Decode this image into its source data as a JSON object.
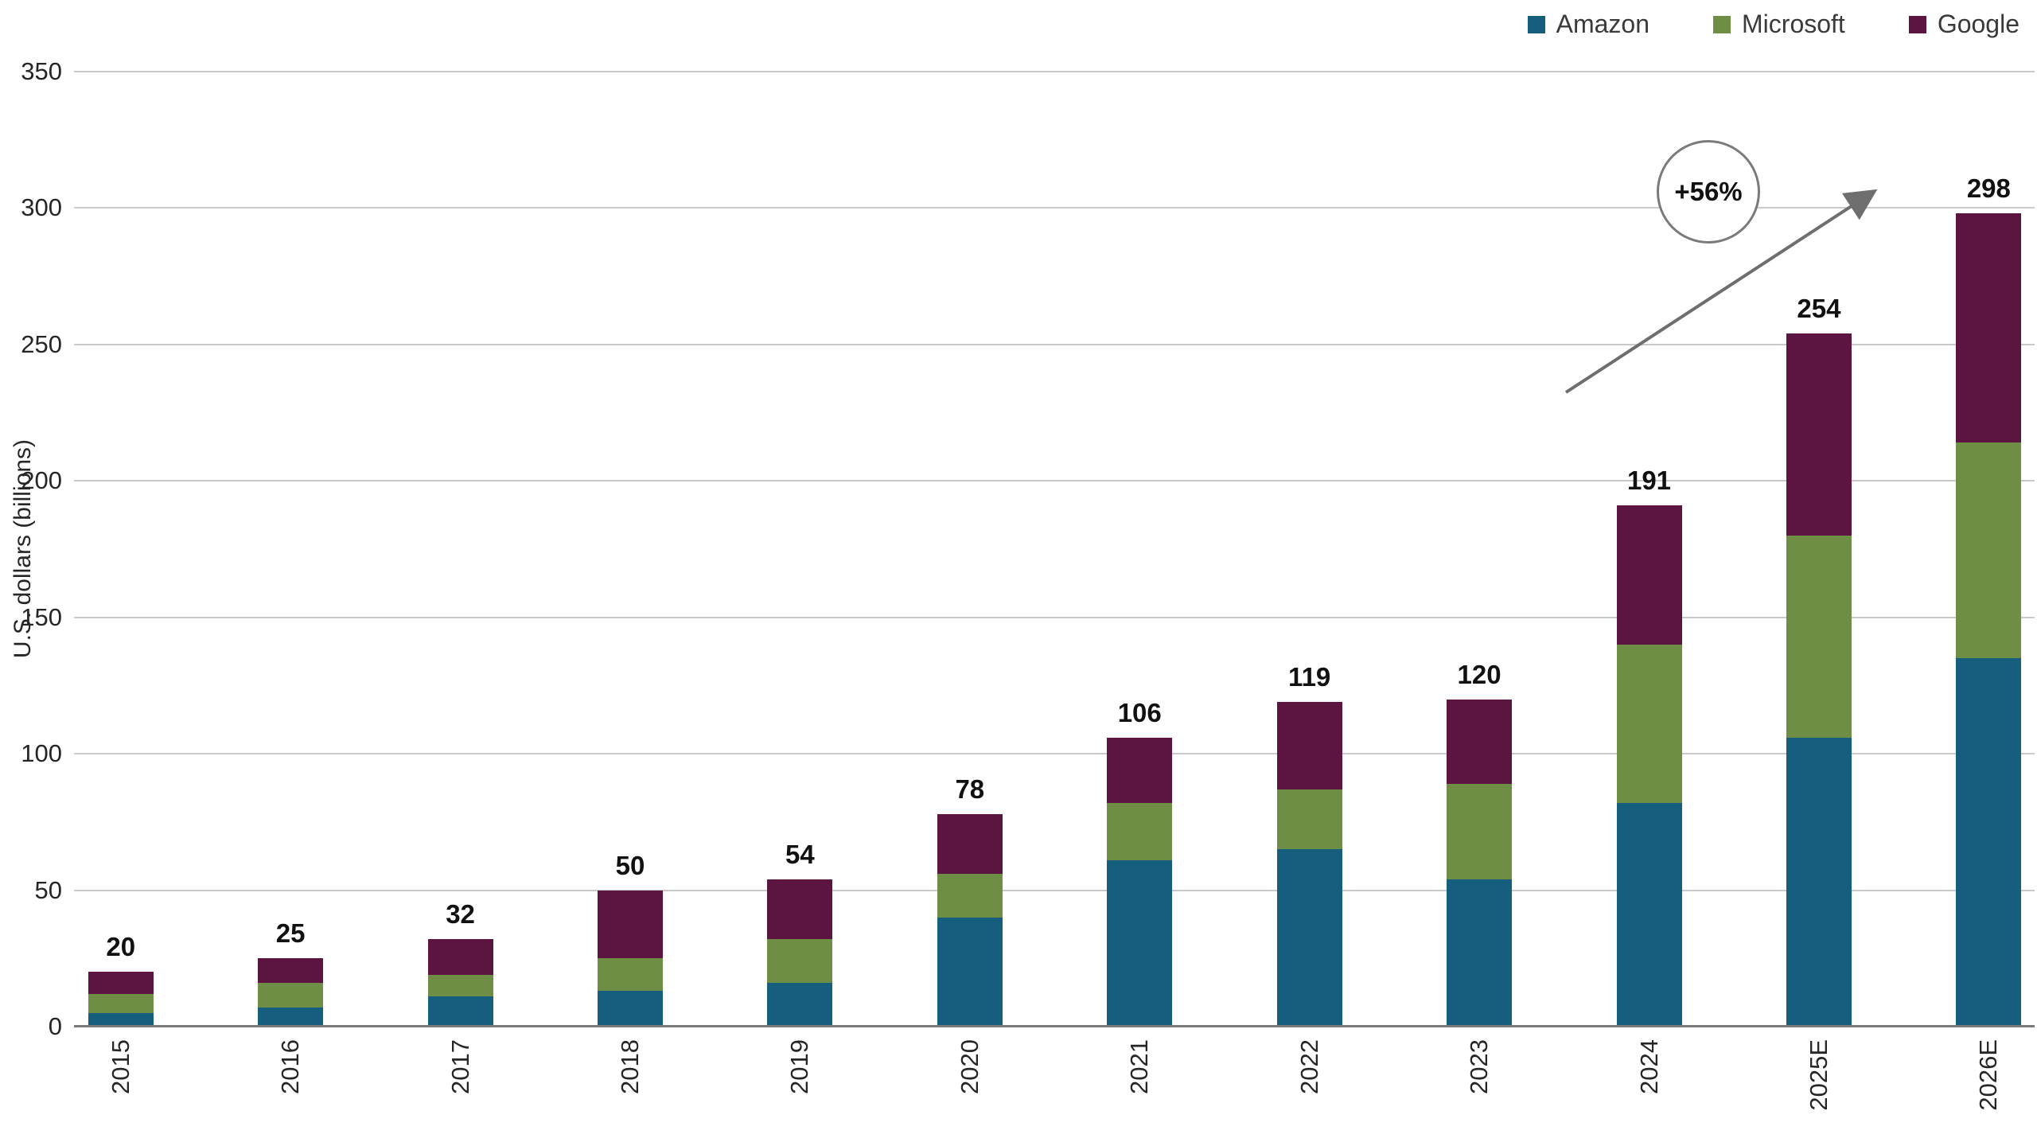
{
  "chart_data": {
    "type": "bar",
    "stacked": true,
    "title": "",
    "ylabel": "U.S. dollars (billions)",
    "xlabel": "",
    "ylim": [
      0,
      350
    ],
    "y_ticks": [
      0,
      50,
      100,
      150,
      200,
      250,
      300,
      350
    ],
    "grid": true,
    "legend_position": "top-right",
    "categories": [
      "2015",
      "2016",
      "2017",
      "2018",
      "2019",
      "2020",
      "2021",
      "2022",
      "2023",
      "2024",
      "2025E",
      "2026E"
    ],
    "series": [
      {
        "name": "Amazon",
        "color": "#155e7d",
        "values": [
          5,
          7,
          11,
          13,
          16,
          40,
          61,
          65,
          54,
          82,
          106,
          135
        ]
      },
      {
        "name": "Microsoft",
        "color": "#6d8e44",
        "values": [
          7,
          9,
          8,
          12,
          16,
          16,
          21,
          22,
          35,
          58,
          74,
          79
        ]
      },
      {
        "name": "Google",
        "color": "#5c1540",
        "values": [
          8,
          9,
          13,
          25,
          22,
          22,
          24,
          32,
          31,
          51,
          74,
          84
        ]
      }
    ],
    "totals": [
      20,
      25,
      32,
      50,
      54,
      78,
      106,
      119,
      120,
      191,
      254,
      298
    ],
    "annotation": {
      "label": "+56%"
    }
  },
  "colors": {
    "amazon": "#155e7d",
    "microsoft": "#6d8e44",
    "google": "#5c1540",
    "gridline": "#c9c9c9",
    "axis_line": "#7a7a7a",
    "arrow": "#6e6e6e",
    "text": "#262626",
    "value_label": "#111111"
  }
}
